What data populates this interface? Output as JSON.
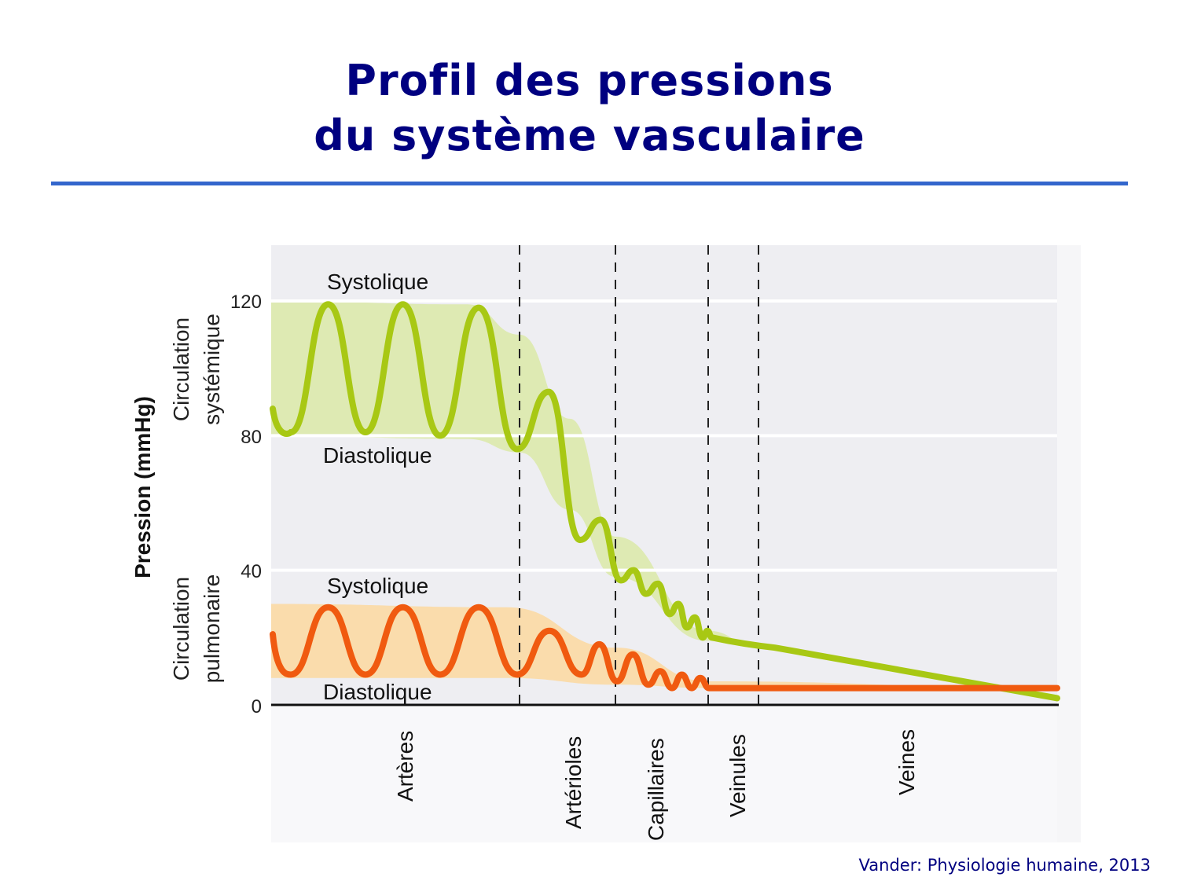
{
  "title": {
    "line1": "Profil des pressions",
    "line2": "du système vasculaire"
  },
  "credit": "Vander: Physiologie humaine, 2013",
  "colors": {
    "title": "#000080",
    "rule": "#3366cc",
    "systemic_line": "#a8c814",
    "systemic_band": "#dbe9a8",
    "pulmonary_line": "#f05a10",
    "pulmonary_band": "#fcd8a0",
    "plot_bg": "#eeeef2",
    "divider": "#222222"
  },
  "chart_data": {
    "type": "line",
    "title": "Profil des pressions du système vasculaire",
    "ylabel": "Pression (mmHg)",
    "ylim": [
      0,
      120
    ],
    "yticks": [
      0,
      40,
      80,
      120
    ],
    "grid": true,
    "y_group_labels": [
      {
        "line1": "Circulation",
        "line2": "systémique",
        "range": [
          80,
          120
        ]
      },
      {
        "line1": "Circulation",
        "line2": "pulmonaire",
        "range": [
          0,
          40
        ]
      }
    ],
    "annotations": [
      {
        "text": "Systolique",
        "series": "Circulation systémique",
        "value": 120
      },
      {
        "text": "Diastolique",
        "series": "Circulation systémique",
        "value": 80
      },
      {
        "text": "Systolique",
        "series": "Circulation pulmonaire",
        "value": 30
      },
      {
        "text": "Diastolique",
        "series": "Circulation pulmonaire",
        "value": 8
      }
    ],
    "categories": [
      "Artères",
      "Artérioles",
      "Capillaires",
      "Veinules",
      "Veines"
    ],
    "segments_x_fraction": [
      [
        0.0,
        0.316
      ],
      [
        0.316,
        0.438
      ],
      [
        0.438,
        0.556
      ],
      [
        0.556,
        0.62
      ],
      [
        0.62,
        1.0
      ]
    ],
    "series": [
      {
        "name": "Circulation systémique",
        "systolic_diastolic_band": [
          {
            "x": 0.0,
            "sys": 120,
            "dia": 80
          },
          {
            "x": 0.25,
            "sys": 119,
            "dia": 79
          },
          {
            "x": 0.316,
            "sys": 110,
            "dia": 75
          },
          {
            "x": 0.38,
            "sys": 85,
            "dia": 58
          },
          {
            "x": 0.438,
            "sys": 50,
            "dia": 38
          },
          {
            "x": 0.556,
            "sys": 22,
            "dia": 19
          },
          {
            "x": 0.62,
            "sys": 17,
            "dia": 17
          },
          {
            "x": 1.0,
            "sys": 2,
            "dia": 2
          }
        ],
        "pulse_peaks": [
          119,
          119,
          118,
          93,
          55,
          40,
          36,
          30,
          26,
          22
        ],
        "pulse_troughs": [
          81,
          81,
          80,
          76,
          49,
          37,
          33,
          27,
          23,
          20
        ],
        "mean_by_segment": [
          100,
          60,
          30,
          18,
          8
        ]
      },
      {
        "name": "Circulation pulmonaire",
        "systolic_diastolic_band": [
          {
            "x": 0.0,
            "sys": 30,
            "dia": 8
          },
          {
            "x": 0.3,
            "sys": 29,
            "dia": 8
          },
          {
            "x": 0.438,
            "sys": 17,
            "dia": 6
          },
          {
            "x": 0.556,
            "sys": 7,
            "dia": 5
          },
          {
            "x": 1.0,
            "sys": 5,
            "dia": 5
          }
        ],
        "pulse_peaks": [
          29,
          29,
          29,
          22,
          18,
          15,
          10,
          9,
          8
        ],
        "pulse_troughs": [
          9,
          9,
          9,
          9,
          9,
          7,
          6,
          5,
          5
        ],
        "mean_by_segment": [
          15,
          12,
          8,
          5,
          5
        ]
      }
    ]
  }
}
